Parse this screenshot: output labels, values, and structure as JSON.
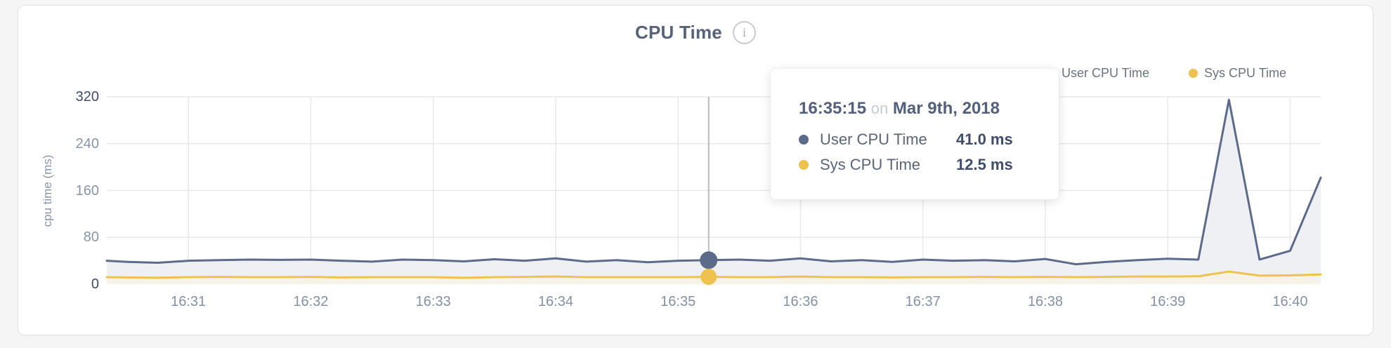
{
  "header": {
    "title": "CPU Time",
    "info_glyph": "i"
  },
  "legend": {
    "items": [
      {
        "label": "User CPU Time"
      },
      {
        "label": "Sys CPU Time"
      }
    ]
  },
  "tooltip": {
    "time": "16:35:15",
    "conjunction": "on",
    "date": "Mar 9th, 2018",
    "rows": [
      {
        "label": "User CPU Time",
        "value": "41.0 ms"
      },
      {
        "label": "Sys CPU Time",
        "value": "12.5 ms"
      }
    ]
  },
  "chart_data": {
    "type": "area",
    "title": "CPU Time",
    "xlabel": "",
    "ylabel": "cpu time (ms)",
    "ylim": [
      0,
      320
    ],
    "yticks": [
      0,
      80,
      160,
      240,
      320
    ],
    "xticks": [
      "16:31",
      "16:32",
      "16:33",
      "16:34",
      "16:35",
      "16:36",
      "16:37",
      "16:38",
      "16:39",
      "16:40"
    ],
    "grid": true,
    "legend_position": "top-right",
    "grid_color": "#e9e9eb",
    "hover_line_color": "#b9babd",
    "x": [
      "16:30:20",
      "16:30:30",
      "16:30:45",
      "16:31:00",
      "16:31:15",
      "16:31:30",
      "16:31:45",
      "16:32:00",
      "16:32:15",
      "16:32:30",
      "16:32:45",
      "16:33:00",
      "16:33:15",
      "16:33:30",
      "16:33:45",
      "16:34:00",
      "16:34:15",
      "16:34:30",
      "16:34:45",
      "16:35:00",
      "16:35:15",
      "16:35:30",
      "16:35:45",
      "16:36:00",
      "16:36:15",
      "16:36:30",
      "16:36:45",
      "16:37:00",
      "16:37:15",
      "16:37:30",
      "16:37:45",
      "16:38:00",
      "16:38:15",
      "16:38:30",
      "16:38:45",
      "16:39:00",
      "16:39:15",
      "16:39:30",
      "16:39:45",
      "16:40:00",
      "16:40:15"
    ],
    "series": [
      {
        "name": "User CPU Time",
        "color": "#5d6b8a",
        "fill": "#eef0f4",
        "values": [
          40,
          38,
          36.5,
          40,
          41,
          42,
          41.5,
          42,
          40,
          38.5,
          42,
          41,
          39,
          42.5,
          40,
          44,
          38.5,
          41,
          37.5,
          40,
          41,
          42,
          40,
          44,
          39,
          41,
          38,
          42,
          40,
          41,
          39,
          43,
          34,
          38,
          41,
          43.5,
          42,
          315,
          42,
          57,
          182
        ]
      },
      {
        "name": "Sys CPU Time",
        "color": "#eec24f",
        "fill": "#f6f2e8",
        "values": [
          12,
          11.5,
          11,
          12,
          12.5,
          12,
          12,
          12.5,
          11.5,
          12,
          12,
          12,
          11,
          12,
          12.5,
          13,
          12,
          12,
          12,
          12,
          12.5,
          12,
          12,
          13,
          12,
          12,
          11.5,
          12,
          12,
          12.5,
          12,
          12.5,
          12,
          12.5,
          13,
          13,
          13.5,
          21.5,
          14.5,
          15,
          16.5
        ]
      }
    ],
    "hover": {
      "x": "16:35:15",
      "values": [
        41.0,
        12.5
      ]
    }
  }
}
